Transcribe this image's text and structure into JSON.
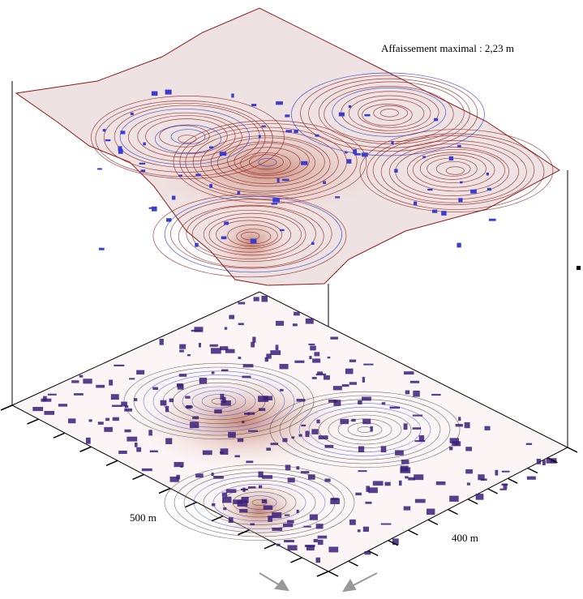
{
  "annotation": "Affaissement maximal : 2,23 m",
  "axis_labels": {
    "left": "500 m",
    "right": "400 m"
  }
}
